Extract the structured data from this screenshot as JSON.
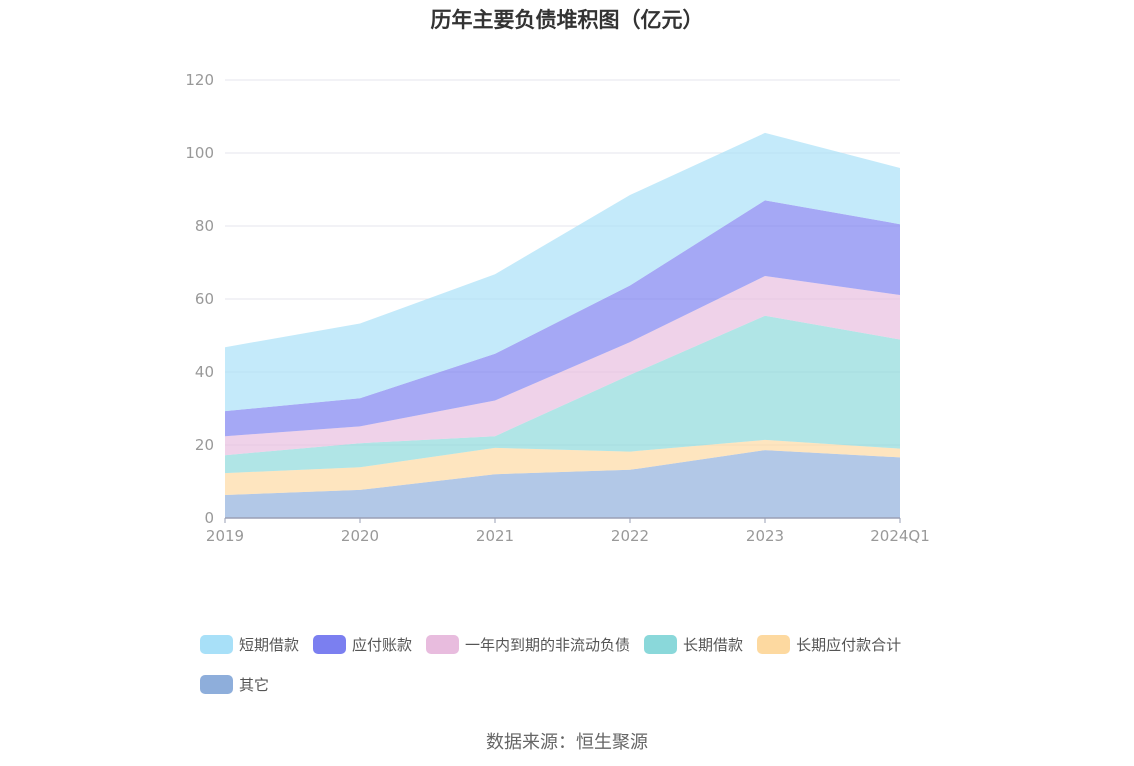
{
  "chart_data": {
    "type": "area",
    "stacked": true,
    "title": "历年主要负债堆积图（亿元）",
    "categories": [
      "2019",
      "2020",
      "2021",
      "2022",
      "2023",
      "2024Q1"
    ],
    "ylim": [
      0,
      120
    ],
    "yticks": [
      0,
      20,
      40,
      60,
      80,
      100,
      120
    ],
    "grid": true,
    "legend_position": "bottom",
    "series": [
      {
        "name": "其它",
        "color": "#8eaedb",
        "values": [
          6.3,
          7.7,
          12.0,
          13.2,
          18.6,
          16.6
        ]
      },
      {
        "name": "长期应付款合计",
        "color": "#fdd9a0",
        "values": [
          6.0,
          6.2,
          7.2,
          5.0,
          2.8,
          2.4
        ]
      },
      {
        "name": "长期借款",
        "color": "#8ad8da",
        "values": [
          4.9,
          6.6,
          3.2,
          21.0,
          34.0,
          29.9
        ]
      },
      {
        "name": "一年内到期的非流动负债",
        "color": "#e8bcde",
        "values": [
          5.2,
          4.6,
          9.8,
          9.0,
          10.9,
          12.2
        ]
      },
      {
        "name": "应付账款",
        "color": "#7b7ff0",
        "values": [
          6.9,
          7.7,
          12.8,
          15.5,
          20.7,
          19.4
        ]
      },
      {
        "name": "短期借款",
        "color": "#a8e0f8",
        "values": [
          17.5,
          20.5,
          21.8,
          24.8,
          18.5,
          15.4
        ]
      }
    ],
    "legend_order": [
      "短期借款",
      "应付账款",
      "一年内到期的非流动负债",
      "长期借款",
      "长期应付款合计",
      "其它"
    ]
  },
  "source": "数据来源：恒生聚源"
}
